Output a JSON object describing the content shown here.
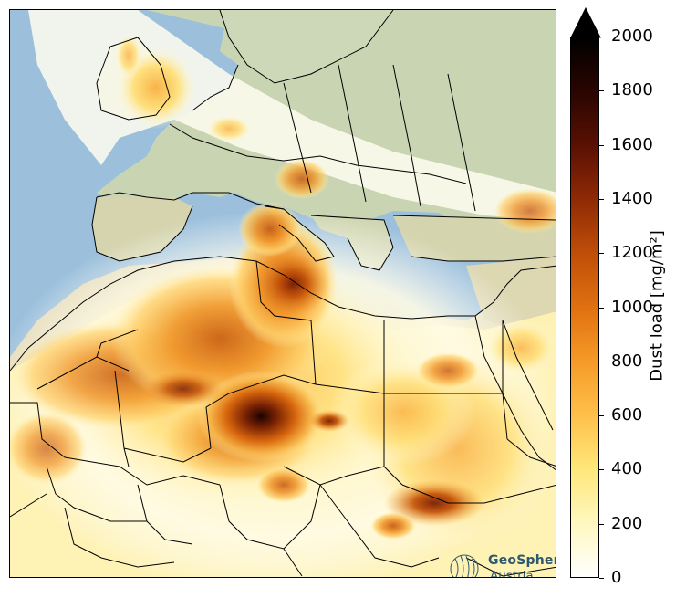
{
  "map": {
    "region": "Europe and North Africa",
    "colors": {
      "ocean": "#9cc0dc",
      "land": "#c8d4b0",
      "border": "#000000"
    }
  },
  "colorbar": {
    "label": "Dust load [mg/m²]",
    "ticks": [
      "0",
      "200",
      "400",
      "600",
      "800",
      "1000",
      "1200",
      "1400",
      "1600",
      "1800",
      "2000"
    ],
    "range": [
      0,
      2000
    ],
    "extend": "max",
    "colormap": [
      "#ffffff",
      "#fff8c0",
      "#ffe77a",
      "#ffc04a",
      "#f59a28",
      "#e07010",
      "#bf4e08",
      "#8f2a05",
      "#5a1003",
      "#2a0501",
      "#000000"
    ]
  },
  "logo": {
    "line1": "GeoSphere",
    "line2": "Austria"
  }
}
